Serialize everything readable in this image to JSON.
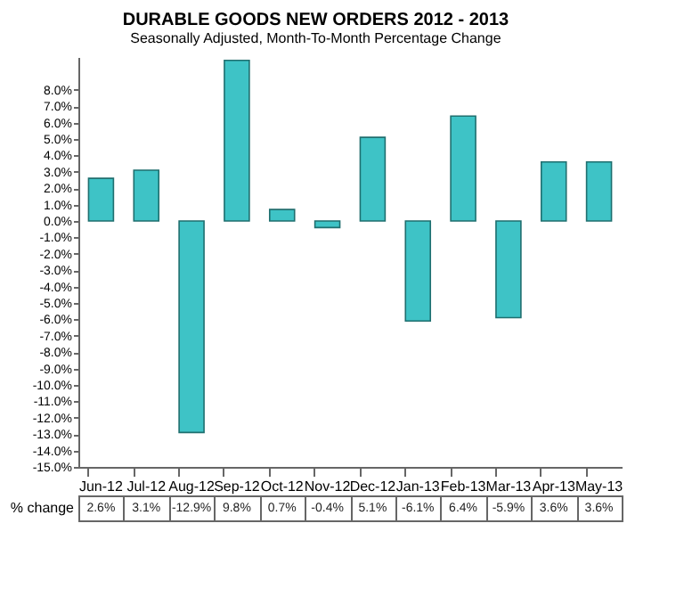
{
  "chart_data": {
    "type": "bar",
    "title": "DURABLE GOODS NEW ORDERS 2012 - 2013",
    "subtitle": "Seasonally Adjusted,  Month-To-Month Percentage Change",
    "categories": [
      "Jun-12",
      "Jul-12",
      "Aug-12",
      "Sep-12",
      "Oct-12",
      "Nov-12",
      "Dec-12",
      "Jan-13",
      "Feb-13",
      "Mar-13",
      "Apr-13",
      "May-13"
    ],
    "values": [
      2.6,
      3.1,
      -12.9,
      9.8,
      0.7,
      -0.4,
      5.1,
      -6.1,
      6.4,
      -5.9,
      3.6,
      3.6
    ],
    "value_labels": [
      "2.6%",
      "3.1%",
      "-12.9%",
      "9.8%",
      "0.7%",
      "-0.4%",
      "5.1%",
      "-6.1%",
      "6.4%",
      "-5.9%",
      "3.6%",
      "3.6%"
    ],
    "annotations": [
      "% change"
    ],
    "color": "#3ec3c6",
    "ylim": [
      -15,
      10
    ],
    "yticks": [
      {
        "value": -15,
        "label": "-15.0%"
      },
      {
        "value": -14,
        "label": "-14.0%"
      },
      {
        "value": -13,
        "label": "-13.0%"
      },
      {
        "value": -12,
        "label": "-12.0%"
      },
      {
        "value": -11,
        "label": "-11.0%"
      },
      {
        "value": -10,
        "label": "-10.0%"
      },
      {
        "value": -9,
        "label": "-9.0%"
      },
      {
        "value": -8,
        "label": "-8.0%"
      },
      {
        "value": -7,
        "label": "-7.0%"
      },
      {
        "value": -6,
        "label": "-6.0%"
      },
      {
        "value": -5,
        "label": "-5.0%"
      },
      {
        "value": -4,
        "label": "-4.0%"
      },
      {
        "value": -3,
        "label": "-3.0%"
      },
      {
        "value": -2,
        "label": "-2.0%"
      },
      {
        "value": -1,
        "label": "-1.0%"
      },
      {
        "value": 0,
        "label": "0.0%"
      },
      {
        "value": 1,
        "label": "1.0%"
      },
      {
        "value": 2,
        "label": "2.0%"
      },
      {
        "value": 3,
        "label": "3.0%"
      },
      {
        "value": 4,
        "label": "4.0%"
      },
      {
        "value": 5,
        "label": "5.0%"
      },
      {
        "value": 6,
        "label": "6.0%"
      },
      {
        "value": 7,
        "label": "7.0%"
      },
      {
        "value": 8,
        "label": "8.0%"
      }
    ]
  }
}
